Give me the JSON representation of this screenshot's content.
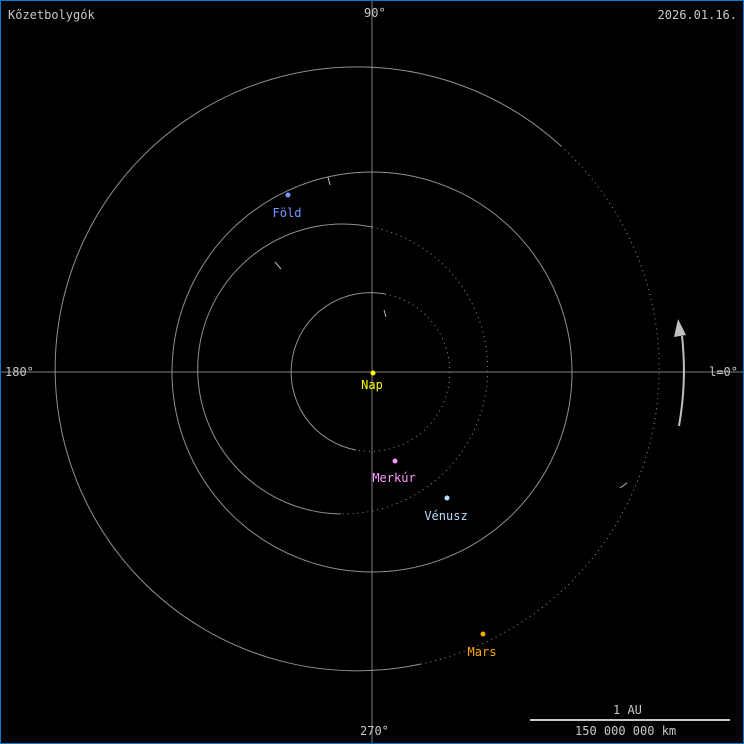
{
  "title": "Kőzetbolygók",
  "date": "2026.01.16.",
  "axis_labels": {
    "top": "90°",
    "left": "180°",
    "right": "l=0°",
    "bottom": "270°"
  },
  "scale": {
    "top": "1 AU",
    "bottom": "150 000 000 km"
  },
  "colors": {
    "border": "#0a7ad0",
    "axis": "#808080",
    "orbit": "#909090"
  },
  "bodies": [
    {
      "name": "Nap",
      "color": "#ffff00"
    },
    {
      "name": "Merkúr",
      "color": "#ff99ff"
    },
    {
      "name": "Vénusz",
      "color": "#bbddff"
    },
    {
      "name": "Föld",
      "color": "#7799ff"
    },
    {
      "name": "Mars",
      "color": "#ffaa00"
    }
  ]
}
